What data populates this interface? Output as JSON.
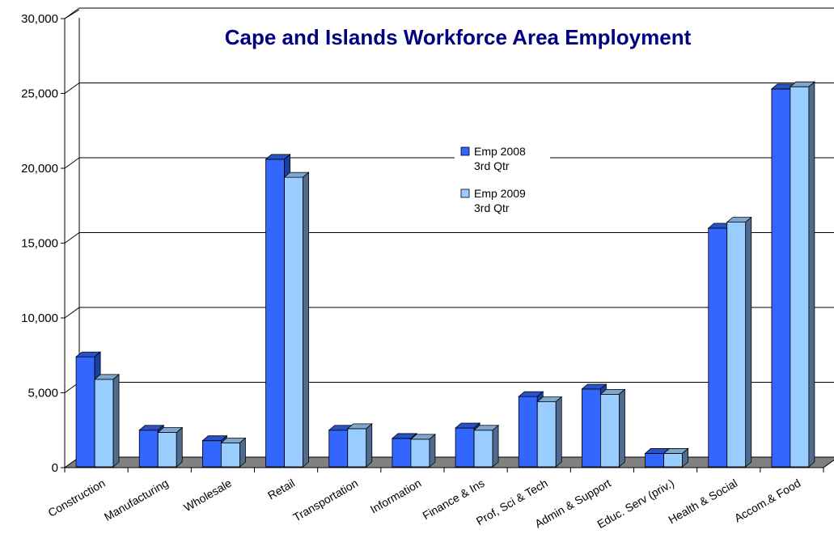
{
  "chart_data": {
    "type": "bar",
    "title": "Cape and Islands Workforce Area Employment",
    "xlabel": "",
    "ylabel": "",
    "ylim": [
      0,
      30000
    ],
    "y_ticks": [
      "0",
      "5,000",
      "10,000",
      "15,000",
      "20,000",
      "25,000",
      "30,000"
    ],
    "grid": true,
    "legend_position": "center",
    "categories": [
      "Construction",
      "Manufacturing",
      "Wholesale",
      "Retail",
      "Transportation",
      "Information",
      "Finance & Ins",
      "Prof, Sci & Tech",
      "Admin & Support",
      "Educ. Serv (priv.)",
      "Health & Social",
      "Accom.& Food"
    ],
    "series": [
      {
        "name_lines": [
          "Emp 2008",
          "3rd Qtr"
        ],
        "color": "#3366FF",
        "values": [
          7400,
          2500,
          1800,
          20600,
          2500,
          1950,
          2650,
          4750,
          5250,
          950,
          16000,
          25300
        ]
      },
      {
        "name_lines": [
          "Emp 2009",
          "3rd Qtr"
        ],
        "color": "#99CCFF",
        "values": [
          5900,
          2350,
          1650,
          19400,
          2600,
          1900,
          2500,
          4400,
          4900,
          950,
          16400,
          25450
        ]
      }
    ],
    "colors": {
      "title": "#000080",
      "floor": "#808080",
      "wall_line": "#000000",
      "bar_side_2008": "#1B3FA0",
      "bar_top_2008": "#2A52C8",
      "bar_side_2009": "#4F6B8F",
      "bar_top_2009": "#7FA6CF"
    }
  }
}
